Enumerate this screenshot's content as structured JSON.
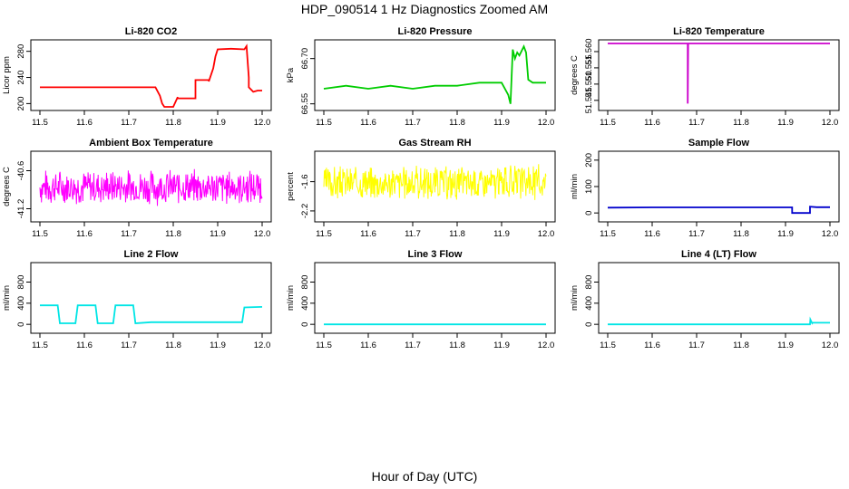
{
  "title": "HDP_090514  1 Hz Diagnostics Zoomed AM",
  "xlabel": "Hour of Day (UTC)",
  "chart_data": [
    {
      "type": "line",
      "title": "Li-820 CO2",
      "ylabel": "Licor ppm",
      "color": "#ff0000",
      "xlim": [
        11.5,
        12.0
      ],
      "xticks": [
        "11.5",
        "11.6",
        "11.7",
        "11.8",
        "11.9",
        "12.0"
      ],
      "ylim": [
        195,
        292
      ],
      "yticks": [
        200,
        240,
        280
      ],
      "ytick_labels": [
        "200",
        "240",
        "280"
      ],
      "x": [
        11.5,
        11.6,
        11.7,
        11.76,
        11.77,
        11.775,
        11.78,
        11.8,
        11.81,
        11.81,
        11.85,
        11.85,
        11.88,
        11.88,
        11.89,
        11.895,
        11.9,
        11.93,
        11.96,
        11.965,
        11.97,
        11.97,
        11.98,
        11.99,
        12.0
      ],
      "y": [
        225,
        225,
        225,
        225,
        212,
        200,
        195,
        195,
        210,
        208,
        208,
        236,
        236,
        234,
        254,
        272,
        283,
        284,
        283,
        288,
        240,
        225,
        218,
        220,
        220
      ]
    },
    {
      "type": "line",
      "title": "Li-820 Pressure",
      "ylabel": "kPa",
      "color": "#00cc00",
      "xlim": [
        11.5,
        12.0
      ],
      "xticks": [
        "11.5",
        "11.6",
        "11.7",
        "11.8",
        "11.9",
        "12.0"
      ],
      "ylim": [
        66.54,
        66.75
      ],
      "yticks": [
        66.55,
        66.7
      ],
      "ytick_labels": [
        "66.55",
        "66.70"
      ],
      "x": [
        11.5,
        11.55,
        11.6,
        11.65,
        11.7,
        11.75,
        11.8,
        11.85,
        11.9,
        11.915,
        11.92,
        11.925,
        11.93,
        11.935,
        11.94,
        11.95,
        11.955,
        11.96,
        11.97,
        11.98,
        11.99,
        12.0
      ],
      "y": [
        66.6,
        66.61,
        66.6,
        66.61,
        66.6,
        66.61,
        66.61,
        66.62,
        66.62,
        66.58,
        66.55,
        66.73,
        66.7,
        66.72,
        66.71,
        66.74,
        66.72,
        66.63,
        66.62,
        66.62,
        66.62,
        66.62
      ]
    },
    {
      "type": "line",
      "title": "Li-820 Temperature",
      "ylabel": "degrees C",
      "color": "#cc00cc",
      "xlim": [
        11.5,
        12.0
      ],
      "xticks": [
        "11.5",
        "11.6",
        "11.7",
        "11.8",
        "11.9",
        "12.0"
      ],
      "ylim": [
        51.543,
        51.5625
      ],
      "yticks": [
        51.545,
        51.55,
        51.555,
        51.56
      ],
      "ytick_labels": [
        "51.545",
        "51.550",
        "51.555",
        "51.560"
      ],
      "x": [
        11.5,
        11.68,
        11.68,
        11.681,
        11.7,
        11.8,
        11.9,
        12.0
      ],
      "y": [
        51.5625,
        51.5625,
        51.544,
        51.5625,
        51.5625,
        51.5625,
        51.5625,
        51.5625
      ]
    },
    {
      "type": "line",
      "title": "Ambient Box Temperature",
      "ylabel": "degrees C",
      "color": "#ff00ff",
      "xlim": [
        11.5,
        12.0
      ],
      "xticks": [
        "11.5",
        "11.6",
        "11.7",
        "11.8",
        "11.9",
        "12.0"
      ],
      "ylim": [
        -41.35,
        -40.35
      ],
      "yticks": [
        -41.2,
        -40.6
      ],
      "ytick_labels": [
        "-41.2",
        "-40.6"
      ],
      "noise": {
        "center": -40.86,
        "spread": 0.3,
        "seed": 7
      }
    },
    {
      "type": "line",
      "title": "Gas Stream RH",
      "ylabel": "percent",
      "color": "#ffff00",
      "xlim": [
        11.5,
        12.0
      ],
      "xticks": [
        "11.5",
        "11.6",
        "11.7",
        "11.8",
        "11.9",
        "12.0"
      ],
      "ylim": [
        -2.35,
        -1.05
      ],
      "yticks": [
        -2.2,
        -1.6
      ],
      "ytick_labels": [
        "-2.2",
        "-1.6"
      ],
      "noise": {
        "center": -1.62,
        "spread": 0.38,
        "seed": 3
      }
    },
    {
      "type": "line",
      "title": "Sample Flow",
      "ylabel": "ml/min",
      "color": "#0000cc",
      "xlim": [
        11.5,
        12.0
      ],
      "xticks": [
        "11.5",
        "11.6",
        "11.7",
        "11.8",
        "11.9",
        "12.0"
      ],
      "ylim": [
        -20,
        220
      ],
      "yticks": [
        0,
        100,
        200
      ],
      "ytick_labels": [
        "0",
        "100",
        "200"
      ],
      "x": [
        11.5,
        11.6,
        11.7,
        11.8,
        11.9,
        11.915,
        11.915,
        11.955,
        11.955,
        11.97,
        12.0
      ],
      "y": [
        20,
        21,
        21,
        21,
        21,
        21,
        0,
        0,
        24,
        22,
        22
      ]
    },
    {
      "type": "line",
      "title": "Line 2 Flow",
      "ylabel": "ml/min",
      "color": "#00e5e5",
      "xlim": [
        11.5,
        12.0
      ],
      "xticks": [
        "11.5",
        "11.6",
        "11.7",
        "11.8",
        "11.9",
        "12.0"
      ],
      "ylim": [
        -100,
        1100
      ],
      "yticks": [
        0,
        400,
        800
      ],
      "ytick_labels": [
        "0",
        "400",
        "800"
      ],
      "x": [
        11.5,
        11.54,
        11.545,
        11.58,
        11.585,
        11.625,
        11.63,
        11.665,
        11.67,
        11.71,
        11.715,
        11.75,
        11.8,
        11.9,
        11.955,
        11.96,
        12.0
      ],
      "y": [
        360,
        360,
        20,
        20,
        360,
        360,
        20,
        20,
        360,
        360,
        20,
        40,
        40,
        40,
        40,
        320,
        330
      ]
    },
    {
      "type": "line",
      "title": "Line 3 Flow",
      "ylabel": "ml/min",
      "color": "#00e5e5",
      "xlim": [
        11.5,
        12.0
      ],
      "xticks": [
        "11.5",
        "11.6",
        "11.7",
        "11.8",
        "11.9",
        "12.0"
      ],
      "ylim": [
        -100,
        1100
      ],
      "yticks": [
        0,
        400,
        800
      ],
      "ytick_labels": [
        "0",
        "400",
        "800"
      ],
      "x": [
        11.5,
        12.0
      ],
      "y": [
        0,
        0
      ]
    },
    {
      "type": "line",
      "title": "Line 4 (LT) Flow",
      "ylabel": "ml/min",
      "color": "#00e5e5",
      "xlim": [
        11.5,
        12.0
      ],
      "xticks": [
        "11.5",
        "11.6",
        "11.7",
        "11.8",
        "11.9",
        "12.0"
      ],
      "ylim": [
        -100,
        1100
      ],
      "yticks": [
        0,
        400,
        800
      ],
      "ytick_labels": [
        "0",
        "400",
        "800"
      ],
      "x": [
        11.5,
        11.955,
        11.956,
        11.96,
        11.961,
        11.97,
        12.0
      ],
      "y": [
        0,
        0,
        90,
        20,
        30,
        30,
        30
      ]
    }
  ]
}
